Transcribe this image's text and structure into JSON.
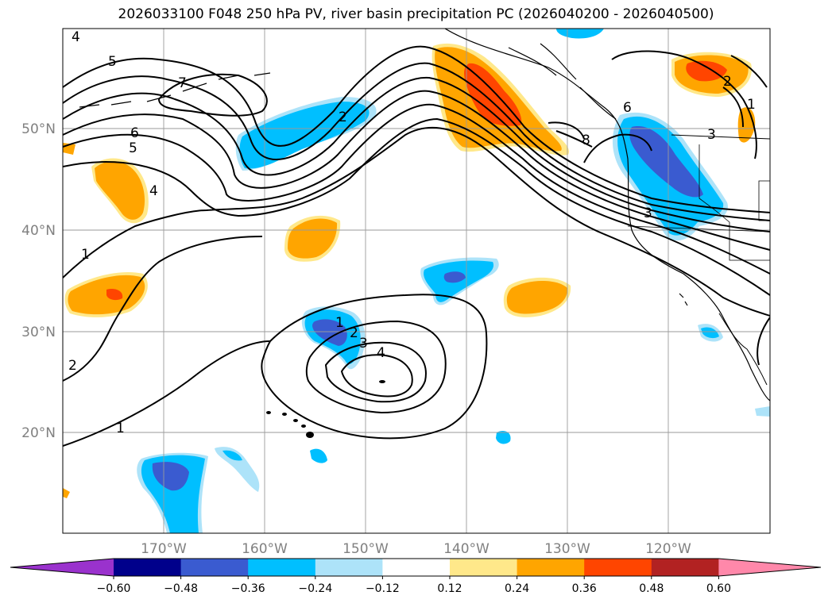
{
  "title": "2026033100 F048 250 hPa PV, river basin precipitation PC (2026040200 - 2026040500)",
  "map": {
    "lon_labels": [
      "170°W",
      "160°W",
      "150°W",
      "140°W",
      "130°W",
      "120°W"
    ],
    "lat_labels": [
      "50°N",
      "40°N",
      "30°N",
      "20°N"
    ],
    "contour_labels": [
      "4",
      "5",
      "7",
      "6",
      "5",
      "4",
      "1",
      "2",
      "1",
      "2",
      "6",
      "8",
      "3",
      "2",
      "1",
      "3",
      "1",
      "2",
      "3",
      "4"
    ]
  },
  "colorbar": {
    "tick_labels": [
      "−0.60",
      "−0.48",
      "−0.36",
      "−0.24",
      "−0.12",
      "0.12",
      "0.24",
      "0.36",
      "0.48",
      "0.60"
    ],
    "colors": [
      "#9a32cd",
      "#00008b",
      "#3a5bd0",
      "#00bfff",
      "#ade3f9",
      "#ffffff",
      "#ffe88a",
      "#ffa500",
      "#ff4500",
      "#b22222",
      "#ff88aa"
    ]
  }
}
